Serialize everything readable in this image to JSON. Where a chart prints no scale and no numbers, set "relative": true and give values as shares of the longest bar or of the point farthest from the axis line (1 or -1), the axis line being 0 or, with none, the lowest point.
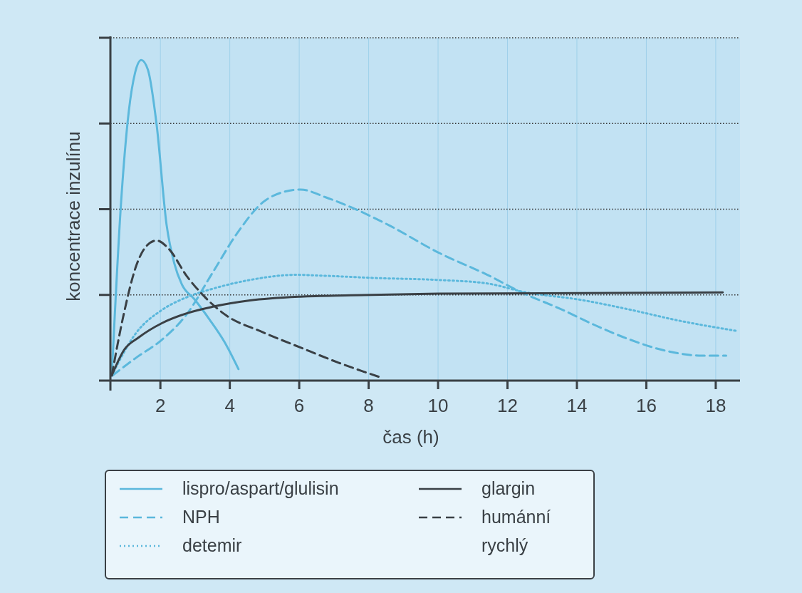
{
  "chart_data": {
    "type": "line",
    "relative": true,
    "xlabel": "čas (h)",
    "ylabel": "koncentrace inzulínu",
    "xlim": [
      0.56,
      18.7
    ],
    "xticks": [
      2,
      4,
      6,
      8,
      10,
      12,
      14,
      16,
      18
    ],
    "grid": true,
    "legend": "bottom",
    "series": [
      {
        "name": "lispro/aspart/glulisin",
        "color": "#5bb8dc",
        "line_style": "solid",
        "x": [
          0.6,
          0.87,
          1.09,
          1.27,
          1.45,
          1.64,
          1.89,
          2.18,
          2.4,
          2.62,
          2.98,
          3.42,
          3.85,
          4.25
        ],
        "values": [
          0.016,
          0.56,
          0.84,
          0.96,
          1.0,
          0.97,
          0.8,
          0.485,
          0.366,
          0.3,
          0.254,
          0.19,
          0.12,
          0.036
        ]
      },
      {
        "name": "NPH",
        "color": "#5bb8dc",
        "line_style": "dashed",
        "x": [
          0.62,
          1.31,
          2.04,
          2.76,
          3.49,
          4.22,
          4.95,
          5.53,
          6.04,
          6.76,
          7.49,
          8.58,
          10,
          11.42,
          12.45,
          13.5,
          14.5,
          15.5,
          16.6,
          17.6,
          18.3
        ],
        "values": [
          0.016,
          0.072,
          0.127,
          0.207,
          0.334,
          0.461,
          0.556,
          0.588,
          0.596,
          0.572,
          0.541,
          0.485,
          0.4,
          0.33,
          0.273,
          0.225,
          0.174,
          0.129,
          0.092,
          0.078,
          0.078
        ]
      },
      {
        "name": "detemir",
        "color": "#5bb8dc",
        "line_style": "dotted",
        "x": [
          0.6,
          1.31,
          2.04,
          2.76,
          3.49,
          4.58,
          5.89,
          6.76,
          8.2,
          10,
          11.42,
          12.45,
          14.16,
          15.5,
          16.9,
          18.6
        ],
        "values": [
          0.016,
          0.15,
          0.22,
          0.26,
          0.286,
          0.314,
          0.33,
          0.327,
          0.32,
          0.314,
          0.303,
          0.277,
          0.251,
          0.222,
          0.188,
          0.155
        ]
      },
      {
        "name": "glargin",
        "color": "#3a4045",
        "line_style": "solid",
        "x": [
          0.6,
          0.95,
          1.38,
          2.04,
          2.76,
          3.49,
          4.58,
          6.04,
          7.49,
          10,
          18.2
        ],
        "values": [
          0.016,
          0.095,
          0.135,
          0.179,
          0.21,
          0.23,
          0.25,
          0.262,
          0.266,
          0.271,
          0.275
        ]
      },
      {
        "name": "humánní rychlý",
        "color": "#3a4045",
        "line_style": "dashed",
        "x": [
          0.6,
          0.95,
          1.31,
          1.6,
          1.89,
          2.25,
          2.76,
          3.27,
          3.85,
          4.95,
          6.04,
          7.13,
          8.4
        ],
        "values": [
          0.016,
          0.21,
          0.36,
          0.42,
          0.437,
          0.41,
          0.326,
          0.262,
          0.207,
          0.151,
          0.103,
          0.056,
          0.008
        ]
      }
    ]
  }
}
